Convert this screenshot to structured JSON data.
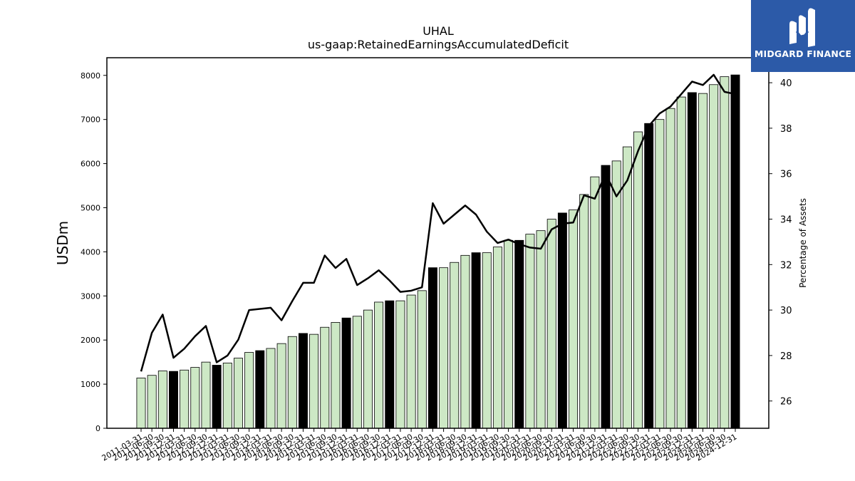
{
  "brand": {
    "name": "MIDGARD FINANCE",
    "bg_color": "#2c5aa8",
    "icon": "midgard-m-icon"
  },
  "chart_data": {
    "type": "bar",
    "title": "UHAL",
    "subtitle": "us-gaap:RetainedEarningsAccumulatedDeficit",
    "ylabel": "USDm",
    "y2label": "Percentage of Assets",
    "ylim": [
      0,
      8400
    ],
    "y2lim": [
      24.8,
      41.1
    ],
    "yticks": [
      0,
      1000,
      2000,
      3000,
      4000,
      5000,
      6000,
      7000,
      8000
    ],
    "y2ticks": [
      26,
      28,
      30,
      32,
      34,
      36,
      38,
      40
    ],
    "grid": false,
    "bar_color": "#cde8c5",
    "highlight_color": "#000000",
    "line_color": "#000000",
    "categories": [
      "2011-03-31",
      "2011-06-30",
      "2011-09-30",
      "2011-12-31",
      "2012-03-31",
      "2012-06-30",
      "2012-09-30",
      "2012-12-31",
      "2013-03-31",
      "2013-06-30",
      "2013-09-30",
      "2013-12-31",
      "2014-03-31",
      "2014-06-30",
      "2014-09-30",
      "2014-12-31",
      "2015-03-31",
      "2015-06-30",
      "2015-09-30",
      "2015-12-31",
      "2016-03-31",
      "2016-06-30",
      "2016-09-30",
      "2016-12-31",
      "2017-03-31",
      "2017-06-30",
      "2017-09-30",
      "2017-12-31",
      "2018-03-31",
      "2018-06-30",
      "2018-09-30",
      "2018-12-31",
      "2019-03-31",
      "2019-06-30",
      "2019-09-30",
      "2019-12-31",
      "2020-03-31",
      "2020-06-30",
      "2020-09-30",
      "2020-12-31",
      "2021-03-31",
      "2021-06-30",
      "2021-09-30",
      "2021-12-31",
      "2022-03-31",
      "2022-06-30",
      "2022-09-30",
      "2022-12-31",
      "2023-03-31",
      "2023-06-30",
      "2023-09-30",
      "2023-12-31",
      "2024-03-31",
      "2024-06-30",
      "2024-09-30",
      "2024-12-31"
    ],
    "series": [
      {
        "type": "bar",
        "axis": "left",
        "values": [
          1140,
          1200,
          1300,
          1290,
          1320,
          1380,
          1500,
          1430,
          1480,
          1590,
          1720,
          1760,
          1810,
          1920,
          2080,
          2150,
          2130,
          2290,
          2400,
          2500,
          2540,
          2680,
          2860,
          2890,
          2890,
          3020,
          3120,
          3640,
          3640,
          3760,
          3920,
          3980,
          3980,
          4110,
          4260,
          4260,
          4400,
          4480,
          4740,
          4880,
          4950,
          5300,
          5700,
          5960,
          6060,
          6380,
          6720,
          6910,
          7000,
          7250,
          7510,
          7610,
          7590,
          7790,
          7970,
          8010
        ],
        "highlighted": [
          3,
          7,
          11,
          15,
          19,
          23,
          27,
          31,
          35,
          39,
          43,
          47,
          51,
          55
        ]
      },
      {
        "type": "line",
        "axis": "right",
        "values": [
          27.3,
          29.0,
          29.8,
          27.9,
          28.3,
          28.85,
          29.3,
          27.7,
          28.0,
          28.7,
          30.0,
          30.05,
          30.1,
          29.55,
          30.4,
          31.2,
          31.2,
          32.4,
          31.85,
          32.25,
          31.1,
          31.4,
          31.75,
          31.3,
          30.8,
          30.85,
          31.0,
          34.7,
          33.8,
          34.2,
          34.6,
          34.2,
          33.45,
          32.95,
          33.1,
          32.9,
          32.75,
          32.7,
          33.55,
          33.8,
          33.85,
          35.05,
          34.9,
          36.0,
          35.0,
          35.7,
          37.0,
          38.1,
          38.65,
          38.95,
          39.5,
          40.05,
          39.9,
          40.35,
          39.6,
          39.5
        ]
      }
    ]
  }
}
